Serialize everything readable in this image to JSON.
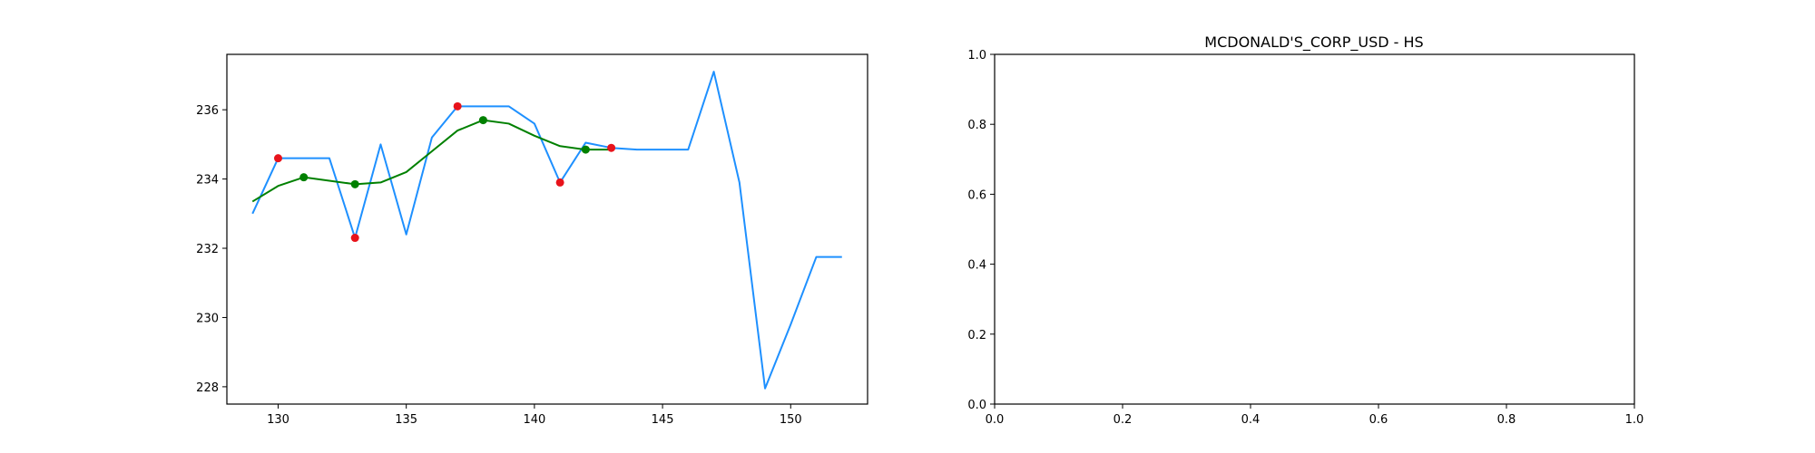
{
  "chart_data": [
    {
      "type": "line",
      "title": "",
      "xlabel": "",
      "ylabel": "",
      "xlim": [
        128,
        153
      ],
      "ylim": [
        227.5,
        237.6
      ],
      "xticks": [
        130,
        135,
        140,
        145,
        150
      ],
      "yticks": [
        228,
        230,
        232,
        234,
        236
      ],
      "series": [
        {
          "kind": "line",
          "color": "#1e90ff",
          "x": [
            129,
            130,
            131,
            132,
            133,
            134,
            135,
            136,
            137,
            138,
            139,
            140,
            141,
            142,
            143,
            144,
            145,
            146,
            147,
            148,
            149,
            150,
            151,
            152
          ],
          "y": [
            233.0,
            234.6,
            234.6,
            234.6,
            232.3,
            235.0,
            232.4,
            235.2,
            236.1,
            236.1,
            236.1,
            235.6,
            233.9,
            235.05,
            234.9,
            234.85,
            234.85,
            234.85,
            237.1,
            233.9,
            227.95,
            229.8,
            231.75,
            231.75
          ]
        },
        {
          "kind": "line",
          "color": "#008000",
          "x": [
            129,
            130,
            131,
            132,
            133,
            134,
            135,
            136,
            137,
            138,
            139,
            140,
            141,
            142,
            143
          ],
          "y": [
            233.35,
            233.8,
            234.05,
            233.95,
            233.85,
            233.9,
            234.2,
            234.8,
            235.4,
            235.7,
            235.6,
            235.25,
            234.95,
            234.85,
            234.85
          ]
        },
        {
          "kind": "scatter",
          "color": "#e8131b",
          "x": [
            130,
            133,
            137,
            141,
            143
          ],
          "y": [
            234.6,
            232.3,
            236.1,
            233.9,
            234.9
          ]
        },
        {
          "kind": "scatter",
          "color": "#008000",
          "x": [
            131,
            133,
            138,
            142
          ],
          "y": [
            234.05,
            233.85,
            235.7,
            234.85
          ]
        }
      ]
    },
    {
      "type": "line",
      "title": "MCDONALD'S_CORP_USD - HS",
      "xlabel": "",
      "ylabel": "",
      "xlim": [
        0,
        1
      ],
      "ylim": [
        0,
        1
      ],
      "xticks": [
        0.0,
        0.2,
        0.4,
        0.6,
        0.8,
        1.0
      ],
      "yticks": [
        0.0,
        0.2,
        0.4,
        0.6,
        0.8,
        1.0
      ],
      "xtick_labels": [
        "0.0",
        "0.2",
        "0.4",
        "0.6",
        "0.8",
        "1.0"
      ],
      "ytick_labels": [
        "0.0",
        "0.2",
        "0.4",
        "0.6",
        "0.8",
        "1.0"
      ],
      "series": []
    }
  ]
}
